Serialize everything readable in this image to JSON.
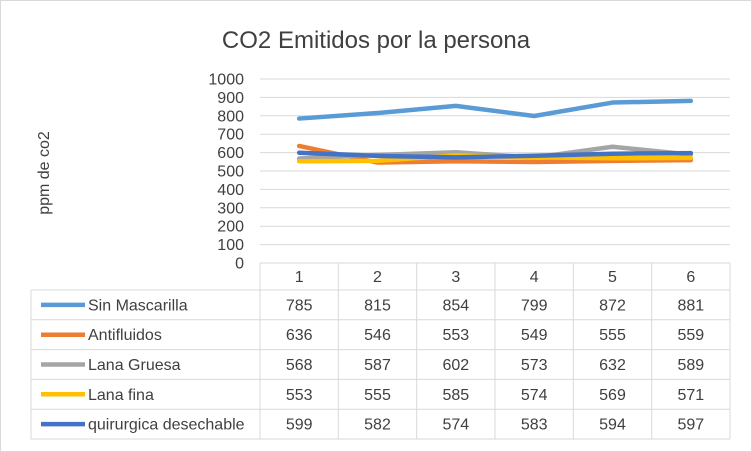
{
  "chart_data": {
    "type": "line",
    "title": "CO2 Emitidos por la persona",
    "xlabel": "",
    "ylabel": "ppm de co2",
    "categories": [
      "1",
      "2",
      "3",
      "4",
      "5",
      "6"
    ],
    "ylim": [
      0,
      1000
    ],
    "yticks": [
      0,
      100,
      200,
      300,
      400,
      500,
      600,
      700,
      800,
      900,
      1000
    ],
    "grid": true,
    "legend": "data-table",
    "series": [
      {
        "name": "Sin Mascarilla",
        "color": "#5b9bd5",
        "values": [
          785,
          815,
          854,
          799,
          872,
          881
        ]
      },
      {
        "name": "Antifluidos",
        "color": "#ed7d31",
        "values": [
          636,
          546,
          553,
          549,
          555,
          559
        ]
      },
      {
        "name": "Lana Gruesa",
        "color": "#a5a5a5",
        "values": [
          568,
          587,
          602,
          573,
          632,
          589
        ]
      },
      {
        "name": "Lana fina",
        "color": "#ffc000",
        "values": [
          553,
          555,
          585,
          574,
          569,
          571
        ]
      },
      {
        "name": "quirurgica desechable",
        "color": "#4472c4",
        "values": [
          599,
          582,
          574,
          583,
          594,
          597
        ]
      }
    ]
  }
}
